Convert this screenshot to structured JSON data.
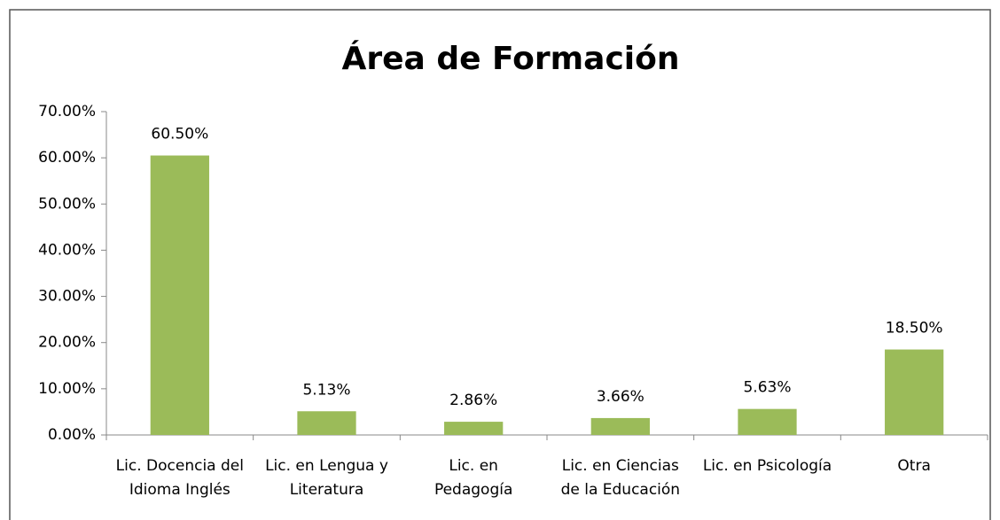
{
  "chart_data": {
    "type": "bar",
    "title": "Área de Formación",
    "categories": [
      "Lic. Docencia del\nIdioma Inglés",
      "Lic. en Lengua y\nLiteratura",
      "Lic. en\nPedagogía",
      "Lic. en Ciencias\nde la Educación",
      "Lic. en Psicología",
      "Otra"
    ],
    "values": [
      60.5,
      5.13,
      2.86,
      3.66,
      5.63,
      18.5
    ],
    "value_labels": [
      "60.50%",
      "5.13%",
      "2.86%",
      "3.66%",
      "5.63%",
      "18.50%"
    ],
    "color": "#9bbb59",
    "ylim": [
      0,
      70
    ],
    "yticks": [
      {
        "value": 0,
        "label": "0.00%"
      },
      {
        "value": 10,
        "label": "10.00%"
      },
      {
        "value": 20,
        "label": "20.00%"
      },
      {
        "value": 30,
        "label": "30.00%"
      },
      {
        "value": 40,
        "label": "40.00%"
      },
      {
        "value": 50,
        "label": "50.00%"
      },
      {
        "value": 60,
        "label": "60.00%"
      },
      {
        "value": 70,
        "label": "70.00%"
      }
    ],
    "grid": false
  }
}
